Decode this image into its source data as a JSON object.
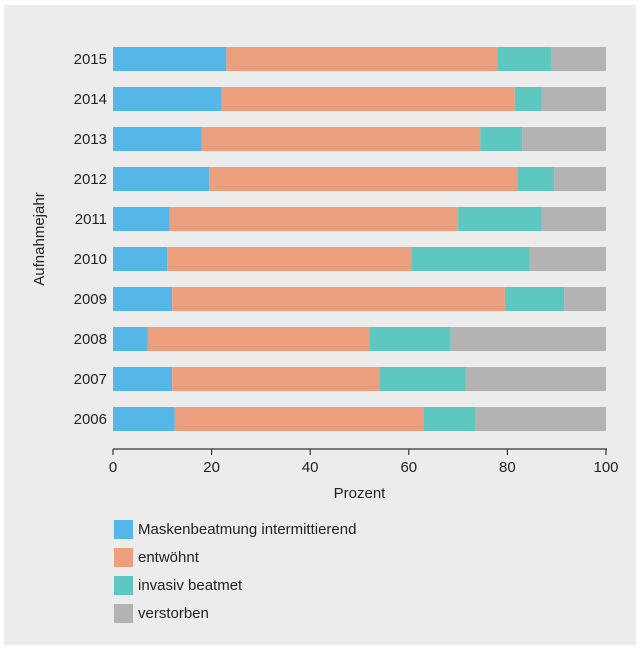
{
  "chart_data": {
    "type": "bar",
    "orientation": "horizontal",
    "stacked": true,
    "categories": [
      "2015",
      "2014",
      "2013",
      "2012",
      "2011",
      "2010",
      "2009",
      "2008",
      "2007",
      "2006"
    ],
    "series": [
      {
        "name": "Maskenbeatmung intermittierend",
        "color": "#55b7e8",
        "values": [
          23,
          22,
          18,
          19.5,
          11.5,
          11,
          12,
          7,
          12,
          12.5
        ]
      },
      {
        "name": "entwöhnt",
        "color": "#ec9f7e",
        "values": [
          55,
          59.5,
          56.5,
          62.5,
          58.5,
          49.5,
          67.5,
          45,
          42,
          50.5
        ]
      },
      {
        "name": "invasiv beatmet",
        "color": "#5ec8c0",
        "values": [
          11,
          5.5,
          8.5,
          7.5,
          17,
          24,
          12,
          16.5,
          17.5,
          10.5
        ]
      },
      {
        "name": "verstorben",
        "color": "#b3b3b3",
        "values": [
          11,
          13,
          17,
          10.5,
          13,
          15.5,
          8.5,
          31.5,
          28.5,
          26.5
        ]
      }
    ],
    "xlabel": "Prozent",
    "ylabel": "Aufnahmejahr",
    "xlim": [
      0,
      100
    ],
    "xticks": [
      0,
      20,
      40,
      60,
      80,
      100
    ],
    "grid": false,
    "legend_position": "bottom-left"
  }
}
